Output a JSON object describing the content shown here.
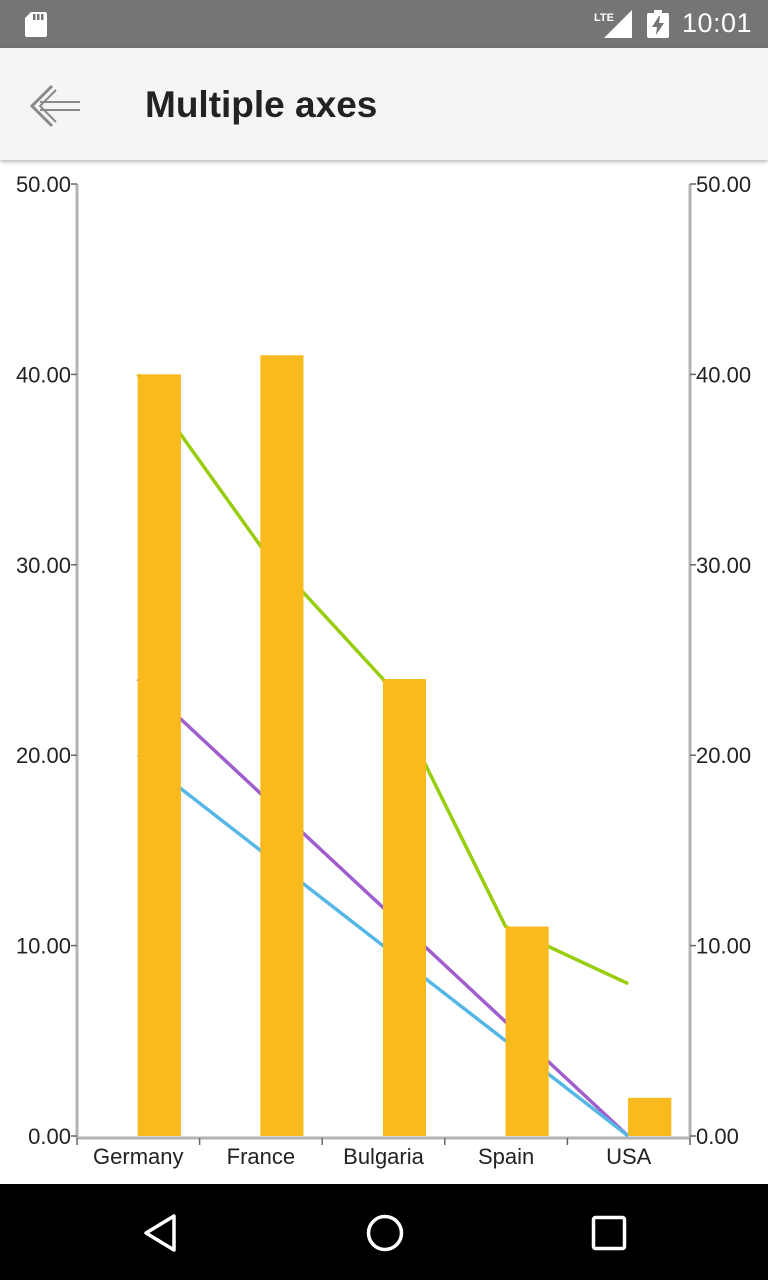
{
  "status_bar": {
    "time": "10:01",
    "network_label": "LTE",
    "icons": [
      "sd-card-icon",
      "signal-icon",
      "battery-charging-icon"
    ]
  },
  "app_bar": {
    "title": "Multiple axes",
    "back_icon": "arrow-left-icon"
  },
  "nav_bar": {
    "icons": [
      "back-triangle-icon",
      "home-circle-icon",
      "recents-square-icon"
    ]
  },
  "colors": {
    "bar": "#F8BA1D",
    "line_green": "#97CD0A",
    "line_purple": "#A15ECF",
    "line_blue": "#55B7E6",
    "axis": "#b3b3b3",
    "tick_text": "#222222"
  },
  "chart_data": {
    "type": "bar",
    "categories": [
      "Germany",
      "France",
      "Bulgaria",
      "Spain",
      "USA"
    ],
    "ylim": [
      0,
      50
    ],
    "y_ticks": [
      "0.00",
      "10.00",
      "20.00",
      "30.00",
      "40.00",
      "50.00"
    ],
    "y_tick_values": [
      0,
      10,
      20,
      30,
      40,
      50
    ],
    "series": [
      {
        "type": "bar",
        "color": "#F8BA1D",
        "values": [
          40,
          41,
          24,
          11,
          2
        ]
      },
      {
        "type": "line",
        "color": "#97CD0A",
        "values": [
          40,
          31,
          24,
          11,
          8
        ]
      },
      {
        "type": "line",
        "color": "#A15ECF",
        "values": [
          24,
          18,
          12,
          6,
          0
        ]
      },
      {
        "type": "line",
        "color": "#55B7E6",
        "values": [
          20,
          15,
          10,
          5,
          0
        ]
      }
    ],
    "grid": false,
    "legend": "none"
  }
}
